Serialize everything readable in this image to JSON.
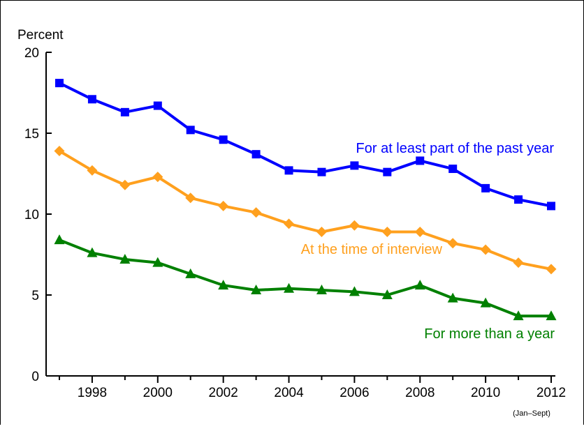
{
  "chart_data": {
    "type": "line",
    "ylabel": "Percent",
    "ylim": [
      0,
      20
    ],
    "yticks": [
      0,
      5,
      10,
      15,
      20
    ],
    "xlim": [
      1997,
      2012
    ],
    "x": [
      1997,
      1998,
      1999,
      2000,
      2001,
      2002,
      2003,
      2004,
      2005,
      2006,
      2007,
      2008,
      2009,
      2010,
      2011,
      2012
    ],
    "xtick_labels": [
      "1998",
      "2000",
      "2002",
      "2004",
      "2006",
      "2008",
      "2010",
      "2012"
    ],
    "x_note": "(Jan–Sept)",
    "grid": false,
    "series": [
      {
        "name": "For at least part of the past year",
        "color": "#0000ff",
        "marker": "square",
        "values": [
          18.1,
          17.1,
          16.3,
          16.7,
          15.2,
          14.6,
          13.7,
          12.7,
          12.6,
          13.0,
          12.6,
          13.3,
          12.8,
          11.6,
          10.9,
          10.5
        ]
      },
      {
        "name": "At the time of interview",
        "color": "#ffa01e",
        "marker": "diamond",
        "values": [
          13.9,
          12.7,
          11.8,
          12.3,
          11.0,
          10.5,
          10.1,
          9.4,
          8.9,
          9.3,
          8.9,
          8.9,
          8.2,
          7.8,
          7.0,
          6.6
        ]
      },
      {
        "name": "For more than a year",
        "color": "#008000",
        "marker": "triangle",
        "values": [
          8.4,
          7.6,
          7.2,
          7.0,
          6.3,
          5.6,
          5.3,
          5.4,
          5.3,
          5.2,
          5.0,
          5.6,
          4.8,
          4.5,
          3.7,
          3.7
        ]
      }
    ]
  }
}
